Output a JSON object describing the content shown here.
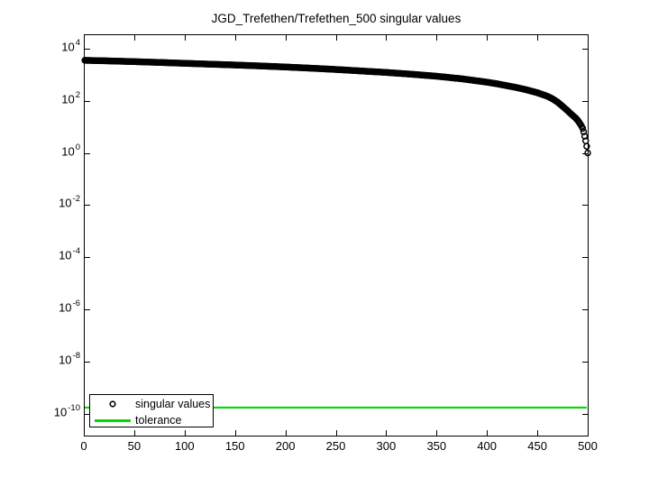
{
  "figure": {
    "background": "#ffffff",
    "title": "JGD_Trefethen/Trefethen_500 singular values"
  },
  "colors": {
    "axis": "#000000",
    "marker": "#000000",
    "tolerance_line": "#00dd00",
    "legend_background": "#ffffff"
  },
  "legend": {
    "position": "bottom-left",
    "items": [
      {
        "label": "singular values",
        "marker": "open-circle",
        "color": "#000000"
      },
      {
        "label": "tolerance",
        "marker": "line",
        "color": "#00dd00"
      }
    ]
  },
  "chart_data": {
    "type": "scatter",
    "title": "JGD_Trefethen/Trefethen_500 singular values",
    "xlabel": "",
    "ylabel": "",
    "grid": false,
    "box": true,
    "yscale": "log",
    "xlim": [
      0,
      500
    ],
    "ylim_log10": [
      -10.85,
      4.55
    ],
    "x_ticks": [
      0,
      50,
      100,
      150,
      200,
      250,
      300,
      350,
      400,
      450,
      500
    ],
    "y_tick_base": "10",
    "y_tick_exponents": [
      4,
      2,
      0,
      -2,
      -4,
      -6,
      -8,
      -10
    ],
    "legend_position": "bottom-left",
    "n_points": 500,
    "series": [
      {
        "name": "singular values",
        "type": "scatter",
        "marker": "o",
        "color": "#000000",
        "interpolation": "log-linear",
        "samples": [
          [
            1,
            3580
          ],
          [
            25,
            3400
          ],
          [
            50,
            3190
          ],
          [
            75,
            2970
          ],
          [
            100,
            2750
          ],
          [
            125,
            2550
          ],
          [
            150,
            2370
          ],
          [
            175,
            2180
          ],
          [
            200,
            1990
          ],
          [
            225,
            1790
          ],
          [
            250,
            1600
          ],
          [
            275,
            1400
          ],
          [
            300,
            1230
          ],
          [
            325,
            1050
          ],
          [
            350,
            880
          ],
          [
            375,
            700
          ],
          [
            400,
            520
          ],
          [
            410,
            450
          ],
          [
            420,
            380
          ],
          [
            430,
            320
          ],
          [
            440,
            260
          ],
          [
            450,
            205
          ],
          [
            460,
            150
          ],
          [
            465,
            120
          ],
          [
            470,
            90
          ],
          [
            475,
            62
          ],
          [
            480,
            42
          ],
          [
            484,
            30
          ],
          [
            488,
            22
          ],
          [
            490,
            18
          ],
          [
            492,
            14
          ],
          [
            494,
            10.5
          ],
          [
            495,
            8.8
          ],
          [
            496,
            6.5
          ],
          [
            497,
            4.4
          ],
          [
            498,
            2.9
          ],
          [
            499,
            1.8
          ],
          [
            500,
            1.0
          ]
        ]
      },
      {
        "name": "tolerance",
        "type": "hline",
        "color": "#00dd00",
        "value": 1.7e-10
      }
    ]
  }
}
